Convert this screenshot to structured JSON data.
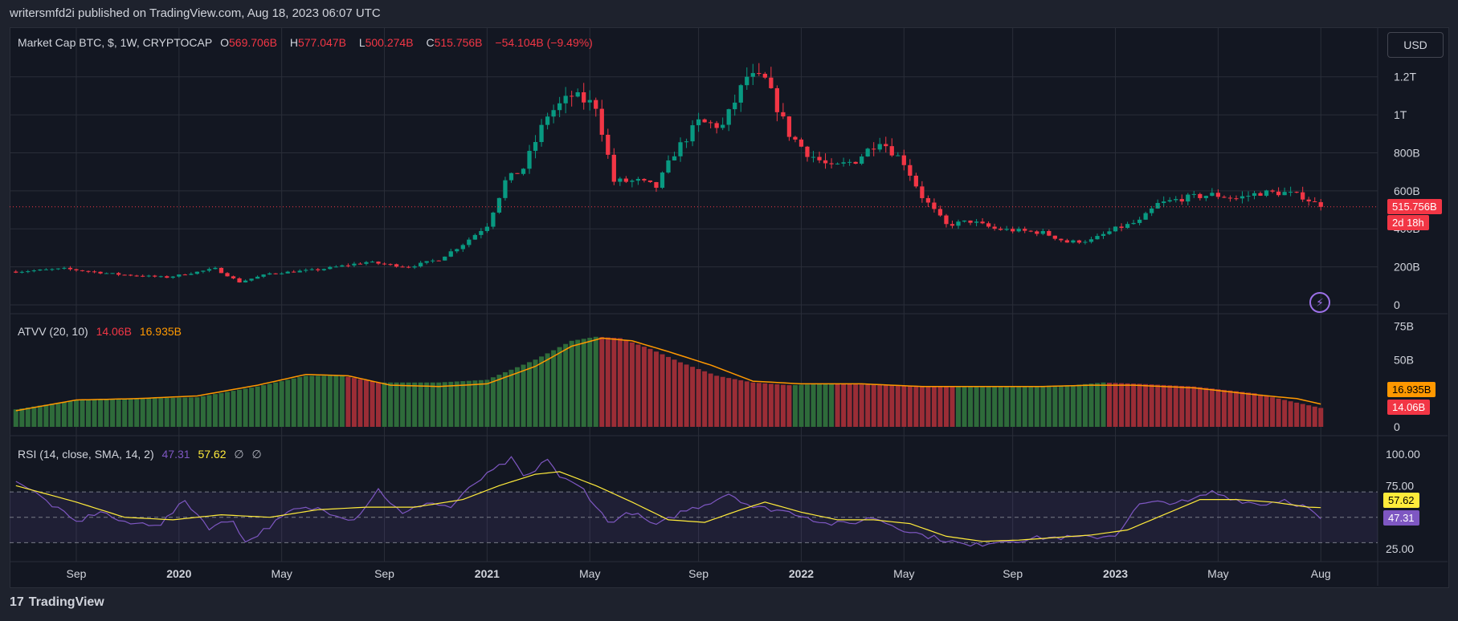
{
  "header": {
    "publish_line": "writersmfd2i published on TradingView.com, Aug 18, 2023 06:07 UTC"
  },
  "footer": {
    "brand": "TradingView",
    "logo_glyph": "17"
  },
  "colors": {
    "up": "#089981",
    "down": "#f23645",
    "volume_up": "#2e6b3a",
    "volume_down": "#9b2d36",
    "ma": "#ff9800",
    "rsi": "#7e57c2",
    "rsi_ma": "#ffeb3b",
    "background": "#131722",
    "grid": "#2a2e39"
  },
  "main_pane": {
    "legend": {
      "symbol": "Market Cap BTC, $, 1W, CRYPTOCAP",
      "o_label": "O",
      "o_value": "569.706B",
      "h_label": "H",
      "h_value": "577.047B",
      "l_label": "L",
      "l_value": "500.274B",
      "c_label": "C",
      "c_value": "515.756B",
      "change": "−54.104B (−9.49%)"
    },
    "currency": "USD",
    "last_price_badge": "515.756B",
    "countdown_badge": "2d 18h",
    "alert_icon": "lightning-icon"
  },
  "volume_pane": {
    "legend": {
      "name": "ATVV (20, 10)",
      "value1": "14.06B",
      "value2": "16.935B"
    },
    "badge_ma": "16.935B",
    "badge_vol": "14.06B"
  },
  "rsi_pane": {
    "legend": {
      "name": "RSI (14, close, SMA, 14, 2)",
      "rsi": "47.31",
      "ma": "57.62",
      "e1": "∅",
      "e2": "∅"
    },
    "badge_ma": "57.62",
    "badge_rsi": "47.31"
  },
  "chart_data": [
    {
      "type": "candlestick",
      "title": "Market Cap BTC, $, 1W, CRYPTOCAP",
      "ylim": [
        0,
        1300
      ],
      "y_unit": "B",
      "yticks": [
        {
          "v": 0,
          "label": "0"
        },
        {
          "v": 200,
          "label": "200B"
        },
        {
          "v": 400,
          "label": "400B"
        },
        {
          "v": 600,
          "label": "600B"
        },
        {
          "v": 800,
          "label": "800B"
        },
        {
          "v": 1000,
          "label": "1T"
        },
        {
          "v": 1200,
          "label": "1.2T"
        }
      ],
      "x_labels": [
        {
          "i": 10,
          "label": "Sep"
        },
        {
          "i": 27,
          "label": "2020"
        },
        {
          "i": 44,
          "label": "May"
        },
        {
          "i": 61,
          "label": "Sep"
        },
        {
          "i": 78,
          "label": "2021"
        },
        {
          "i": 95,
          "label": "May"
        },
        {
          "i": 113,
          "label": "Sep"
        },
        {
          "i": 130,
          "label": "2022"
        },
        {
          "i": 147,
          "label": "May"
        },
        {
          "i": 165,
          "label": "Sep"
        },
        {
          "i": 182,
          "label": "2023"
        },
        {
          "i": 199,
          "label": "May"
        },
        {
          "i": 216,
          "label": "Aug"
        }
      ],
      "close_keypoints": [
        [
          0,
          175
        ],
        [
          8,
          190
        ],
        [
          17,
          160
        ],
        [
          25,
          145
        ],
        [
          33,
          190
        ],
        [
          37,
          120
        ],
        [
          42,
          165
        ],
        [
          50,
          185
        ],
        [
          58,
          225
        ],
        [
          65,
          200
        ],
        [
          70,
          240
        ],
        [
          74,
          320
        ],
        [
          78,
          420
        ],
        [
          81,
          650
        ],
        [
          84,
          720
        ],
        [
          88,
          1000
        ],
        [
          92,
          1100
        ],
        [
          96,
          1050
        ],
        [
          99,
          650
        ],
        [
          103,
          650
        ],
        [
          106,
          620
        ],
        [
          109,
          800
        ],
        [
          113,
          960
        ],
        [
          117,
          940
        ],
        [
          121,
          1200
        ],
        [
          124,
          1180
        ],
        [
          128,
          900
        ],
        [
          131,
          800
        ],
        [
          135,
          720
        ],
        [
          139,
          760
        ],
        [
          143,
          870
        ],
        [
          147,
          750
        ],
        [
          150,
          570
        ],
        [
          154,
          420
        ],
        [
          158,
          440
        ],
        [
          162,
          400
        ],
        [
          166,
          390
        ],
        [
          170,
          380
        ],
        [
          174,
          330
        ],
        [
          178,
          340
        ],
        [
          182,
          400
        ],
        [
          186,
          440
        ],
        [
          189,
          530
        ],
        [
          193,
          560
        ],
        [
          198,
          580
        ],
        [
          202,
          560
        ],
        [
          206,
          590
        ],
        [
          210,
          590
        ],
        [
          213,
          570
        ],
        [
          216,
          515.756
        ]
      ],
      "last_close": 515.756
    },
    {
      "type": "bar",
      "title": "ATVV (20, 10)",
      "ylim": [
        0,
        80
      ],
      "yticks": [
        {
          "v": 0,
          "label": "0"
        },
        {
          "v": 50,
          "label": "50B"
        },
        {
          "v": 75,
          "label": "75B"
        }
      ],
      "volume_keypoints": [
        [
          0,
          13
        ],
        [
          10,
          20
        ],
        [
          20,
          21
        ],
        [
          30,
          22
        ],
        [
          40,
          30
        ],
        [
          48,
          38
        ],
        [
          54,
          38
        ],
        [
          60,
          33
        ],
        [
          70,
          33
        ],
        [
          78,
          35
        ],
        [
          86,
          50
        ],
        [
          92,
          64
        ],
        [
          96,
          67
        ],
        [
          100,
          66
        ],
        [
          105,
          58
        ],
        [
          110,
          48
        ],
        [
          116,
          38
        ],
        [
          122,
          33
        ],
        [
          128,
          31
        ],
        [
          135,
          32
        ],
        [
          145,
          31
        ],
        [
          155,
          30
        ],
        [
          165,
          30
        ],
        [
          175,
          31
        ],
        [
          180,
          33
        ],
        [
          186,
          32
        ],
        [
          195,
          30
        ],
        [
          205,
          25
        ],
        [
          212,
          18
        ],
        [
          216,
          14.06
        ]
      ],
      "ma_keypoints": [
        [
          0,
          12
        ],
        [
          10,
          20
        ],
        [
          20,
          21
        ],
        [
          30,
          23
        ],
        [
          40,
          31
        ],
        [
          48,
          39
        ],
        [
          55,
          38
        ],
        [
          62,
          31
        ],
        [
          70,
          30
        ],
        [
          78,
          32
        ],
        [
          86,
          45
        ],
        [
          92,
          60
        ],
        [
          97,
          66
        ],
        [
          102,
          64
        ],
        [
          108,
          56
        ],
        [
          115,
          46
        ],
        [
          122,
          34
        ],
        [
          130,
          32
        ],
        [
          140,
          32
        ],
        [
          150,
          30
        ],
        [
          160,
          30
        ],
        [
          170,
          30
        ],
        [
          178,
          31
        ],
        [
          185,
          31
        ],
        [
          195,
          29
        ],
        [
          205,
          24
        ],
        [
          212,
          21
        ],
        [
          216,
          16.935
        ]
      ]
    },
    {
      "type": "line",
      "title": "RSI (14, close, SMA, 14, 2)",
      "ylim": [
        15,
        110
      ],
      "yticks": [
        {
          "v": 25,
          "label": "25.00"
        },
        {
          "v": 75,
          "label": "75.00"
        },
        {
          "v": 100,
          "label": "100.00"
        }
      ],
      "bands": [
        30,
        50,
        70
      ],
      "rsi_keypoints": [
        [
          0,
          80
        ],
        [
          5,
          63
        ],
        [
          10,
          46
        ],
        [
          14,
          55
        ],
        [
          18,
          45
        ],
        [
          24,
          45
        ],
        [
          28,
          63
        ],
        [
          32,
          42
        ],
        [
          36,
          48
        ],
        [
          38,
          30
        ],
        [
          42,
          43
        ],
        [
          46,
          56
        ],
        [
          50,
          57
        ],
        [
          56,
          48
        ],
        [
          60,
          72
        ],
        [
          64,
          52
        ],
        [
          68,
          62
        ],
        [
          72,
          58
        ],
        [
          76,
          77
        ],
        [
          80,
          90
        ],
        [
          82,
          96
        ],
        [
          84,
          82
        ],
        [
          86,
          86
        ],
        [
          88,
          97
        ],
        [
          90,
          82
        ],
        [
          94,
          72
        ],
        [
          98,
          46
        ],
        [
          102,
          54
        ],
        [
          106,
          43
        ],
        [
          110,
          54
        ],
        [
          114,
          60
        ],
        [
          118,
          69
        ],
        [
          122,
          58
        ],
        [
          126,
          56
        ],
        [
          130,
          52
        ],
        [
          134,
          45
        ],
        [
          138,
          45
        ],
        [
          142,
          50
        ],
        [
          146,
          42
        ],
        [
          150,
          36
        ],
        [
          154,
          32
        ],
        [
          158,
          27
        ],
        [
          162,
          31
        ],
        [
          166,
          32
        ],
        [
          170,
          34
        ],
        [
          174,
          34
        ],
        [
          178,
          34
        ],
        [
          182,
          36
        ],
        [
          186,
          60
        ],
        [
          190,
          62
        ],
        [
          194,
          62
        ],
        [
          198,
          70
        ],
        [
          202,
          64
        ],
        [
          206,
          60
        ],
        [
          210,
          64
        ],
        [
          214,
          57
        ],
        [
          216,
          47.31
        ]
      ],
      "ma_keypoints": [
        [
          0,
          75
        ],
        [
          10,
          62
        ],
        [
          18,
          50
        ],
        [
          26,
          48
        ],
        [
          34,
          52
        ],
        [
          42,
          50
        ],
        [
          50,
          56
        ],
        [
          58,
          58
        ],
        [
          66,
          58
        ],
        [
          74,
          64
        ],
        [
          80,
          75
        ],
        [
          86,
          84
        ],
        [
          90,
          86
        ],
        [
          96,
          75
        ],
        [
          102,
          62
        ],
        [
          108,
          48
        ],
        [
          114,
          46
        ],
        [
          120,
          56
        ],
        [
          124,
          62
        ],
        [
          130,
          54
        ],
        [
          136,
          48
        ],
        [
          142,
          48
        ],
        [
          148,
          45
        ],
        [
          154,
          35
        ],
        [
          160,
          31
        ],
        [
          166,
          32
        ],
        [
          172,
          34
        ],
        [
          178,
          36
        ],
        [
          184,
          40
        ],
        [
          190,
          52
        ],
        [
          196,
          64
        ],
        [
          202,
          64
        ],
        [
          208,
          62
        ],
        [
          214,
          58
        ],
        [
          216,
          57.62
        ]
      ]
    }
  ]
}
